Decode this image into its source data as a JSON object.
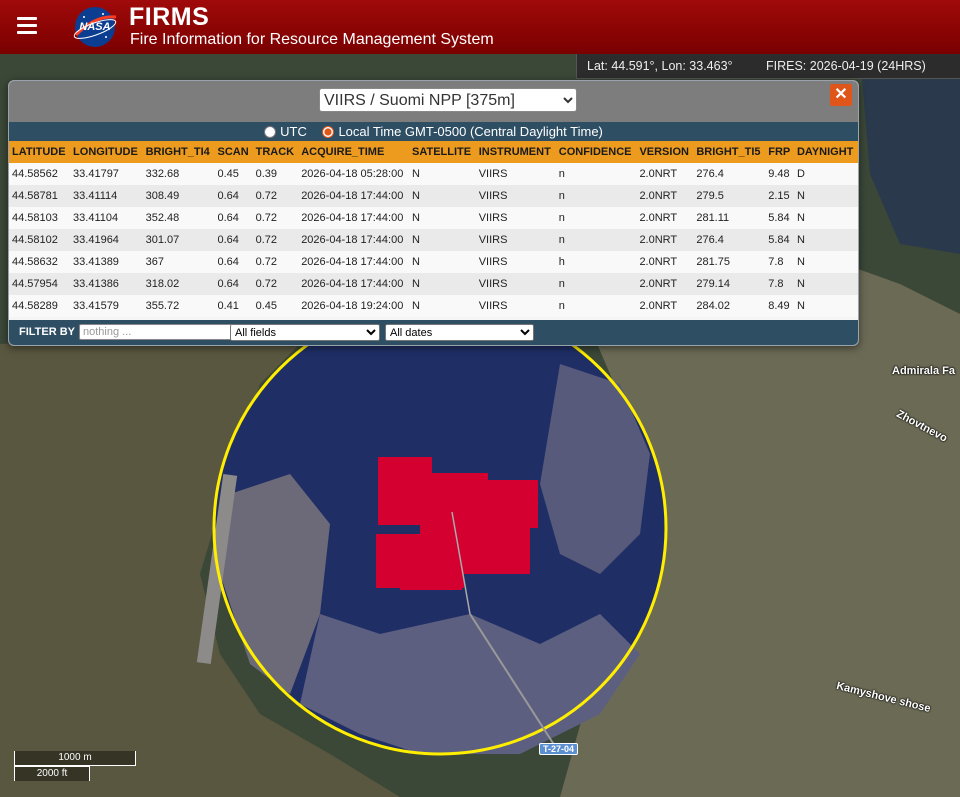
{
  "header": {
    "title": "FIRMS",
    "subtitle": "Fire Information for Resource Management System",
    "logo_text": "NASA",
    "menu_icon": "hamburger-icon"
  },
  "status": {
    "coords": "Lat: 44.591°, Lon: 33.463°",
    "fires": "FIRES: 2026-04-19 (24HRS)"
  },
  "popup": {
    "satellite_selected": "VIIRS / Suomi NPP [375m]",
    "close_label": "✕",
    "tz_utc": "UTC",
    "tz_local": "Local Time GMT-0500 (Central Daylight Time)",
    "tz_selected": "local",
    "columns": [
      "LATITUDE",
      "LONGITUDE",
      "BRIGHT_TI4",
      "SCAN",
      "TRACK",
      "ACQUIRE_TIME",
      "SATELLITE",
      "INSTRUMENT",
      "CONFIDENCE",
      "VERSION",
      "BRIGHT_TI5",
      "FRP",
      "DAYNIGHT"
    ],
    "rows": [
      [
        "44.58562",
        "33.41797",
        "332.68",
        "0.45",
        "0.39",
        "2026-04-18 05:28:00",
        "N",
        "VIIRS",
        "n",
        "2.0NRT",
        "276.4",
        "9.48",
        "D"
      ],
      [
        "44.58781",
        "33.41114",
        "308.49",
        "0.64",
        "0.72",
        "2026-04-18 17:44:00",
        "N",
        "VIIRS",
        "n",
        "2.0NRT",
        "279.5",
        "2.15",
        "N"
      ],
      [
        "44.58103",
        "33.41104",
        "352.48",
        "0.64",
        "0.72",
        "2026-04-18 17:44:00",
        "N",
        "VIIRS",
        "n",
        "2.0NRT",
        "281.11",
        "5.84",
        "N"
      ],
      [
        "44.58102",
        "33.41964",
        "301.07",
        "0.64",
        "0.72",
        "2026-04-18 17:44:00",
        "N",
        "VIIRS",
        "n",
        "2.0NRT",
        "276.4",
        "5.84",
        "N"
      ],
      [
        "44.58632",
        "33.41389",
        "367",
        "0.64",
        "0.72",
        "2026-04-18 17:44:00",
        "N",
        "VIIRS",
        "h",
        "2.0NRT",
        "281.75",
        "7.8",
        "N"
      ],
      [
        "44.57954",
        "33.41386",
        "318.02",
        "0.64",
        "0.72",
        "2026-04-18 17:44:00",
        "N",
        "VIIRS",
        "n",
        "2.0NRT",
        "279.14",
        "7.8",
        "N"
      ],
      [
        "44.58289",
        "33.41579",
        "355.72",
        "0.41",
        "0.45",
        "2026-04-18 19:24:00",
        "N",
        "VIIRS",
        "n",
        "2.0NRT",
        "284.02",
        "8.49",
        "N"
      ]
    ],
    "filter": {
      "label": "FILTER BY",
      "placeholder": "nothing ...",
      "fields_selected": "All fields",
      "dates_selected": "All dates"
    }
  },
  "map": {
    "labels": {
      "admirala": "Admirala Fa",
      "zhovtnevo": "Zhovtnevo",
      "kamyshove": "Kamyshove shose"
    },
    "route_badge": "T-27-04",
    "scale_metric": "1000 m",
    "scale_imperial": "2000 ft"
  },
  "colors": {
    "header_red": "#8e0000",
    "table_header": "#ec9b1e",
    "popup_band": "#2e4e64",
    "fire_pixel": "#d4002f",
    "selection_circle": "#ffee00",
    "close_button": "#e0561a"
  }
}
